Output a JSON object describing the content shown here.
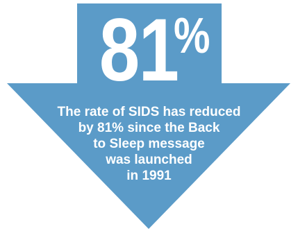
{
  "headline": {
    "number": "81",
    "percent_sign": "%"
  },
  "caption": {
    "lines": [
      "The rate of SIDS has reduced",
      "by 81% since the Back",
      "to Sleep message",
      "was launched",
      "in 1991"
    ]
  },
  "colors": {
    "arrow_fill": "#5B9BC8",
    "text": "#FFFFFF",
    "background": "#FFFFFF"
  },
  "graphic": {
    "shape": "down-arrow-icon"
  }
}
